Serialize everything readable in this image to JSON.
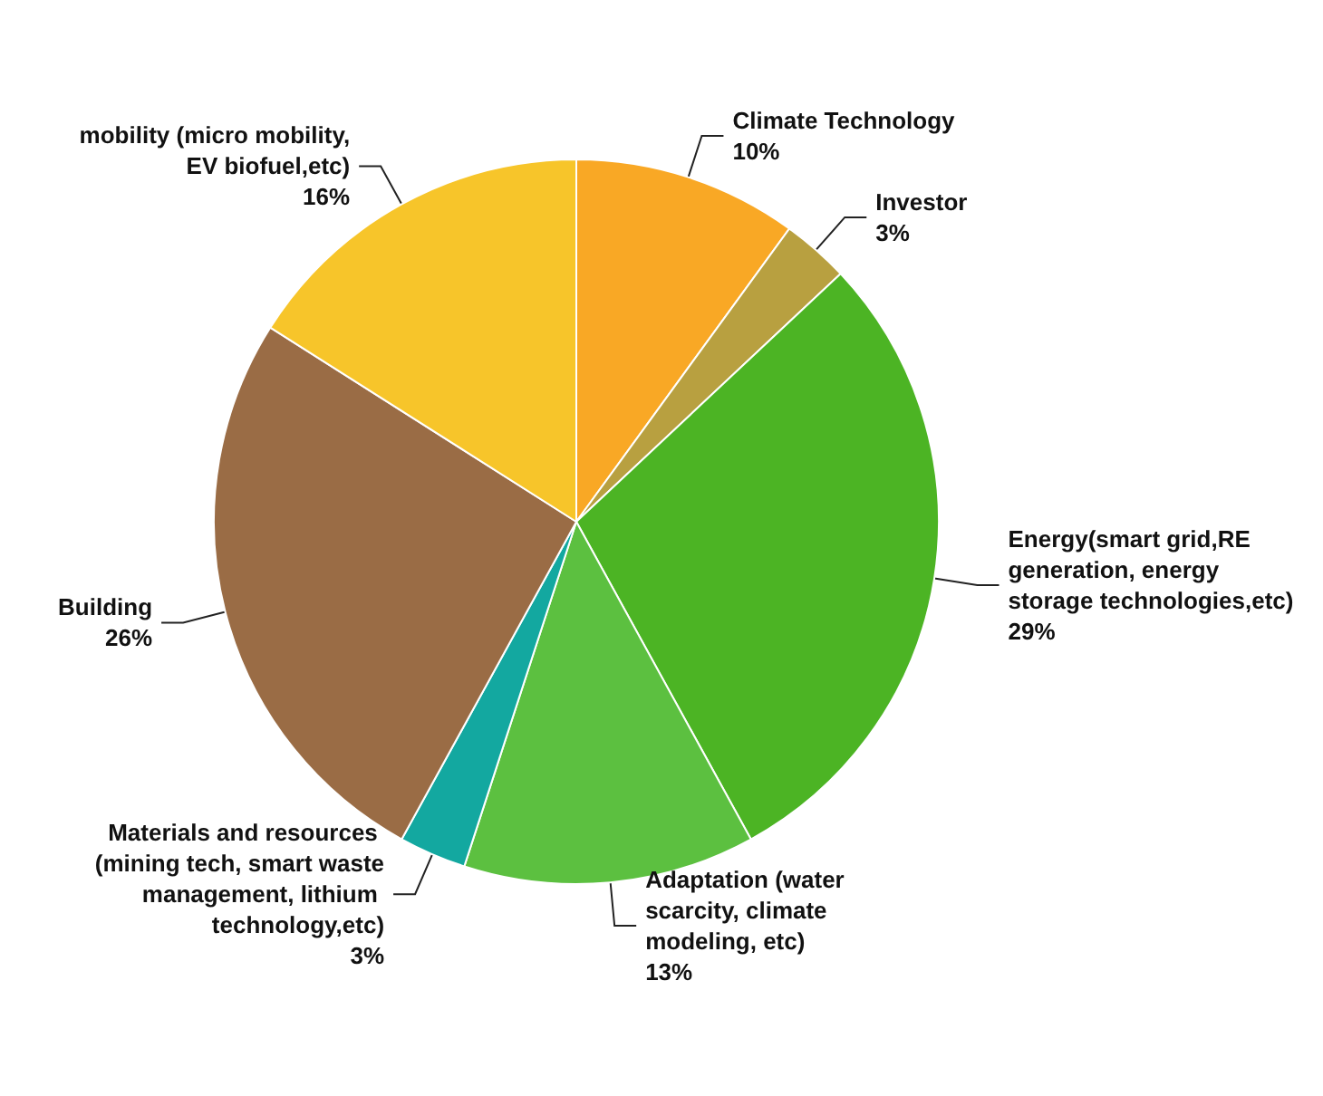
{
  "chart_data": {
    "type": "pie",
    "categories": [
      "Climate Technology",
      "Investor",
      "Energy(smart grid,RE generation, energy storage technologies,etc)",
      "Adaptation (water scarcity, climate modeling, etc)",
      "Materials and resources (mining tech, smart waste management, lithium technology,etc)",
      "Building",
      "mobility (micro mobility,EV biofuel,etc)"
    ],
    "values": [
      10,
      3,
      29,
      13,
      3,
      26,
      16
    ],
    "value_labels": [
      "10%",
      "3%",
      "29%",
      "13%",
      "3%",
      "26%",
      "16%"
    ],
    "colors": [
      "#f9a825",
      "#b8a040",
      "#4cb424",
      "#5cc040",
      "#13a8a0",
      "#9a6c45",
      "#f7c52a"
    ]
  }
}
